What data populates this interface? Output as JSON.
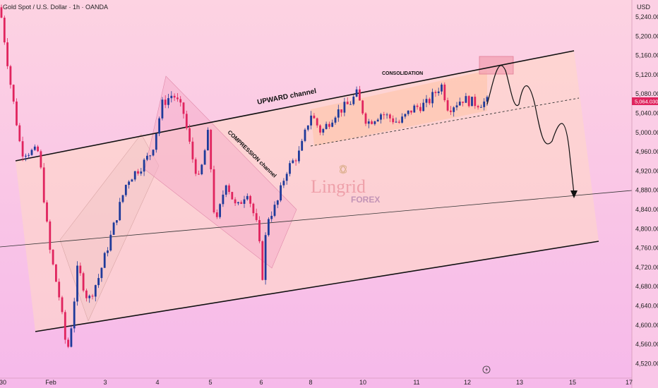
{
  "header": {
    "symbol_line": "Gold Spot / U.S. Dollar · 1h · OANDA"
  },
  "price_axis": {
    "currency": "USD",
    "ticks": [
      "5,240.000",
      "5,200.000",
      "5,160.000",
      "5,120.000",
      "5,080.000",
      "5,040.000",
      "5,000.000",
      "4,960.000",
      "4,920.000",
      "4,880.000",
      "4,840.000",
      "4,800.000",
      "4,760.000",
      "4,720.000",
      "4,680.000",
      "4,640.000",
      "4,600.000",
      "4,560.000",
      "4,520.000"
    ],
    "current_price": "5,064.030"
  },
  "time_axis": {
    "ticks": [
      "30",
      "Feb",
      "3",
      "4",
      "5",
      "6",
      "8",
      "10",
      "11",
      "12",
      "13",
      "15",
      "17"
    ]
  },
  "annotations": {
    "upward_channel": "UPWARD channel",
    "compression_channel": "COMPRESSION channel",
    "consolidation": "CONSOLIDATION"
  },
  "watermark": {
    "brand": "Lingrid",
    "sub": "FOREX"
  },
  "colors": {
    "bg_top": "#fdd0e4",
    "bg_bottom": "#f5b8e8",
    "up_candle": "#1e3a9a",
    "down_candle": "#e0245e",
    "channel_fill": "#ffcfa8",
    "price_tag": "#e0245e"
  },
  "chart_data": {
    "type": "candlestick",
    "title": "Gold Spot / U.S. Dollar · 1h · OANDA",
    "ylim": [
      4500,
      5275
    ],
    "x_ticks": [
      "30",
      "Feb",
      "3",
      "4",
      "5",
      "6",
      "8",
      "10",
      "11",
      "12",
      "13",
      "15",
      "17"
    ],
    "last_price": 5064.03,
    "series": [
      {
        "name": "price",
        "keypoints": [
          [
            0,
            5260
          ],
          [
            15,
            5100
          ],
          [
            30,
            4960
          ],
          [
            55,
            4960
          ],
          [
            70,
            4760
          ],
          [
            85,
            4650
          ],
          [
            95,
            4540
          ],
          [
            102,
            4610
          ],
          [
            110,
            4720
          ],
          [
            125,
            4650
          ],
          [
            140,
            4700
          ],
          [
            160,
            4800
          ],
          [
            180,
            4900
          ],
          [
            200,
            4930
          ],
          [
            215,
            4960
          ],
          [
            230,
            5060
          ],
          [
            245,
            5080
          ],
          [
            260,
            5040
          ],
          [
            272,
            4950
          ],
          [
            282,
            4900
          ],
          [
            295,
            5000
          ],
          [
            305,
            4800
          ],
          [
            320,
            4900
          ],
          [
            335,
            4840
          ],
          [
            350,
            4880
          ],
          [
            365,
            4800
          ],
          [
            372,
            4700
          ],
          [
            378,
            4820
          ],
          [
            392,
            4850
          ],
          [
            405,
            4920
          ],
          [
            425,
            4960
          ],
          [
            440,
            5040
          ],
          [
            455,
            5000
          ],
          [
            475,
            5040
          ],
          [
            495,
            5060
          ],
          [
            505,
            5080
          ],
          [
            520,
            5020
          ],
          [
            540,
            5040
          ],
          [
            565,
            5020
          ],
          [
            585,
            5050
          ],
          [
            605,
            5060
          ],
          [
            625,
            5100
          ],
          [
            635,
            5050
          ],
          [
            655,
            5070
          ],
          [
            675,
            5060
          ],
          [
            690,
            5064
          ]
        ]
      }
    ]
  }
}
